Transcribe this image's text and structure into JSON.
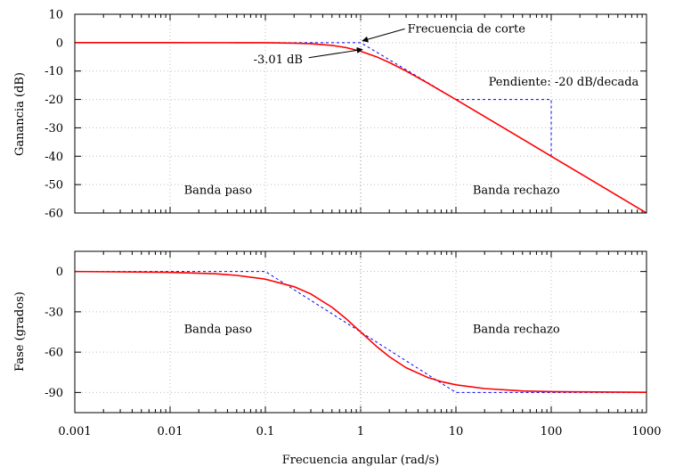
{
  "chart_data": [
    {
      "type": "line",
      "panel": "gain",
      "ylabel": "Ganancia (dB)",
      "xlabel": "",
      "xscale": "log",
      "xlim": [
        0.001,
        1000
      ],
      "ylim": [
        -60,
        10
      ],
      "yticks": [
        10,
        0,
        -10,
        -20,
        -30,
        -40,
        -50,
        -60
      ],
      "ytick_labels": [
        "10",
        "0",
        "-10",
        "-20",
        "-30",
        "-40",
        "-50",
        "-60"
      ],
      "grid": true,
      "series": [
        {
          "style": "solid",
          "color": "#ff0000",
          "x": [
            0.001,
            0.01,
            0.05,
            0.1,
            0.2,
            0.3,
            0.5,
            0.7,
            1,
            1.5,
            2,
            3,
            5,
            7,
            10,
            20,
            50,
            100,
            200,
            500,
            1000
          ],
          "y": [
            0,
            0,
            -0.01,
            -0.04,
            -0.17,
            -0.37,
            -0.97,
            -1.73,
            -3.01,
            -5.12,
            -6.99,
            -10.0,
            -14.15,
            -17.03,
            -20.04,
            -26.03,
            -33.98,
            -40.0,
            -46.02,
            -53.98,
            -60.0
          ]
        },
        {
          "style": "dashed",
          "color": "#0000ff",
          "x": [
            0.001,
            1,
            1000
          ],
          "y": [
            0,
            0,
            -60
          ]
        },
        {
          "style": "dashed",
          "color": "#0000ff",
          "x": [
            10,
            100,
            100
          ],
          "y": [
            -20,
            -20,
            -40
          ]
        },
        {
          "style": "dotted",
          "color": "#888888",
          "x": [
            1,
            1
          ],
          "y": [
            10,
            -60
          ]
        }
      ],
      "annotations": [
        {
          "text": "Frecuencia de corte",
          "x": 3.1,
          "y": 3.6,
          "arrow_to": [
            1,
            0
          ]
        },
        {
          "text": "-3.01 dB",
          "x": 0.075,
          "y": -7.2,
          "arrow_to": [
            1,
            -3.01
          ]
        },
        {
          "text": "Pendiente: -20 dB/decada",
          "x": 22,
          "y": -15.1
        },
        {
          "text": "Banda paso",
          "x": 0.014,
          "y": -53.3
        },
        {
          "text": "Banda rechazo",
          "x": 15,
          "y": -53.3
        }
      ]
    },
    {
      "type": "line",
      "panel": "phase",
      "ylabel": "Fase (grados)",
      "xlabel": "Frecuencia angular (rad/s)",
      "xscale": "log",
      "xlim": [
        0.001,
        1000
      ],
      "ylim": [
        -105,
        15
      ],
      "xticks": [
        0.001,
        0.01,
        0.1,
        1,
        10,
        100,
        1000
      ],
      "xtick_labels": [
        "0.001",
        "0.01",
        "0.1",
        "1",
        "10",
        "100",
        "1000"
      ],
      "yticks": [
        0,
        -30,
        -60,
        -90
      ],
      "ytick_labels": [
        "0",
        "-30",
        "-60",
        "-90"
      ],
      "grid": true,
      "series": [
        {
          "style": "solid",
          "color": "#ff0000",
          "x": [
            0.001,
            0.01,
            0.03,
            0.05,
            0.1,
            0.2,
            0.3,
            0.5,
            0.7,
            1,
            1.5,
            2,
            3,
            5,
            7,
            10,
            20,
            50,
            100,
            1000
          ],
          "y": [
            0,
            -0.6,
            -1.7,
            -2.9,
            -5.7,
            -11.3,
            -16.7,
            -26.6,
            -35.0,
            -45.0,
            -56.3,
            -63.4,
            -71.6,
            -78.7,
            -81.9,
            -84.3,
            -87.1,
            -88.9,
            -89.4,
            -89.9
          ]
        },
        {
          "style": "dashed",
          "color": "#0000ff",
          "x": [
            0.001,
            0.1,
            10,
            1000
          ],
          "y": [
            0,
            0,
            -90,
            -90
          ]
        },
        {
          "style": "dotted",
          "color": "#888888",
          "x": [
            1,
            1
          ],
          "y": [
            15,
            -105
          ]
        }
      ],
      "annotations": [
        {
          "text": "Banda paso",
          "x": 0.014,
          "y": -45.5
        },
        {
          "text": "Banda rechazo",
          "x": 15,
          "y": -45.5
        }
      ]
    }
  ]
}
